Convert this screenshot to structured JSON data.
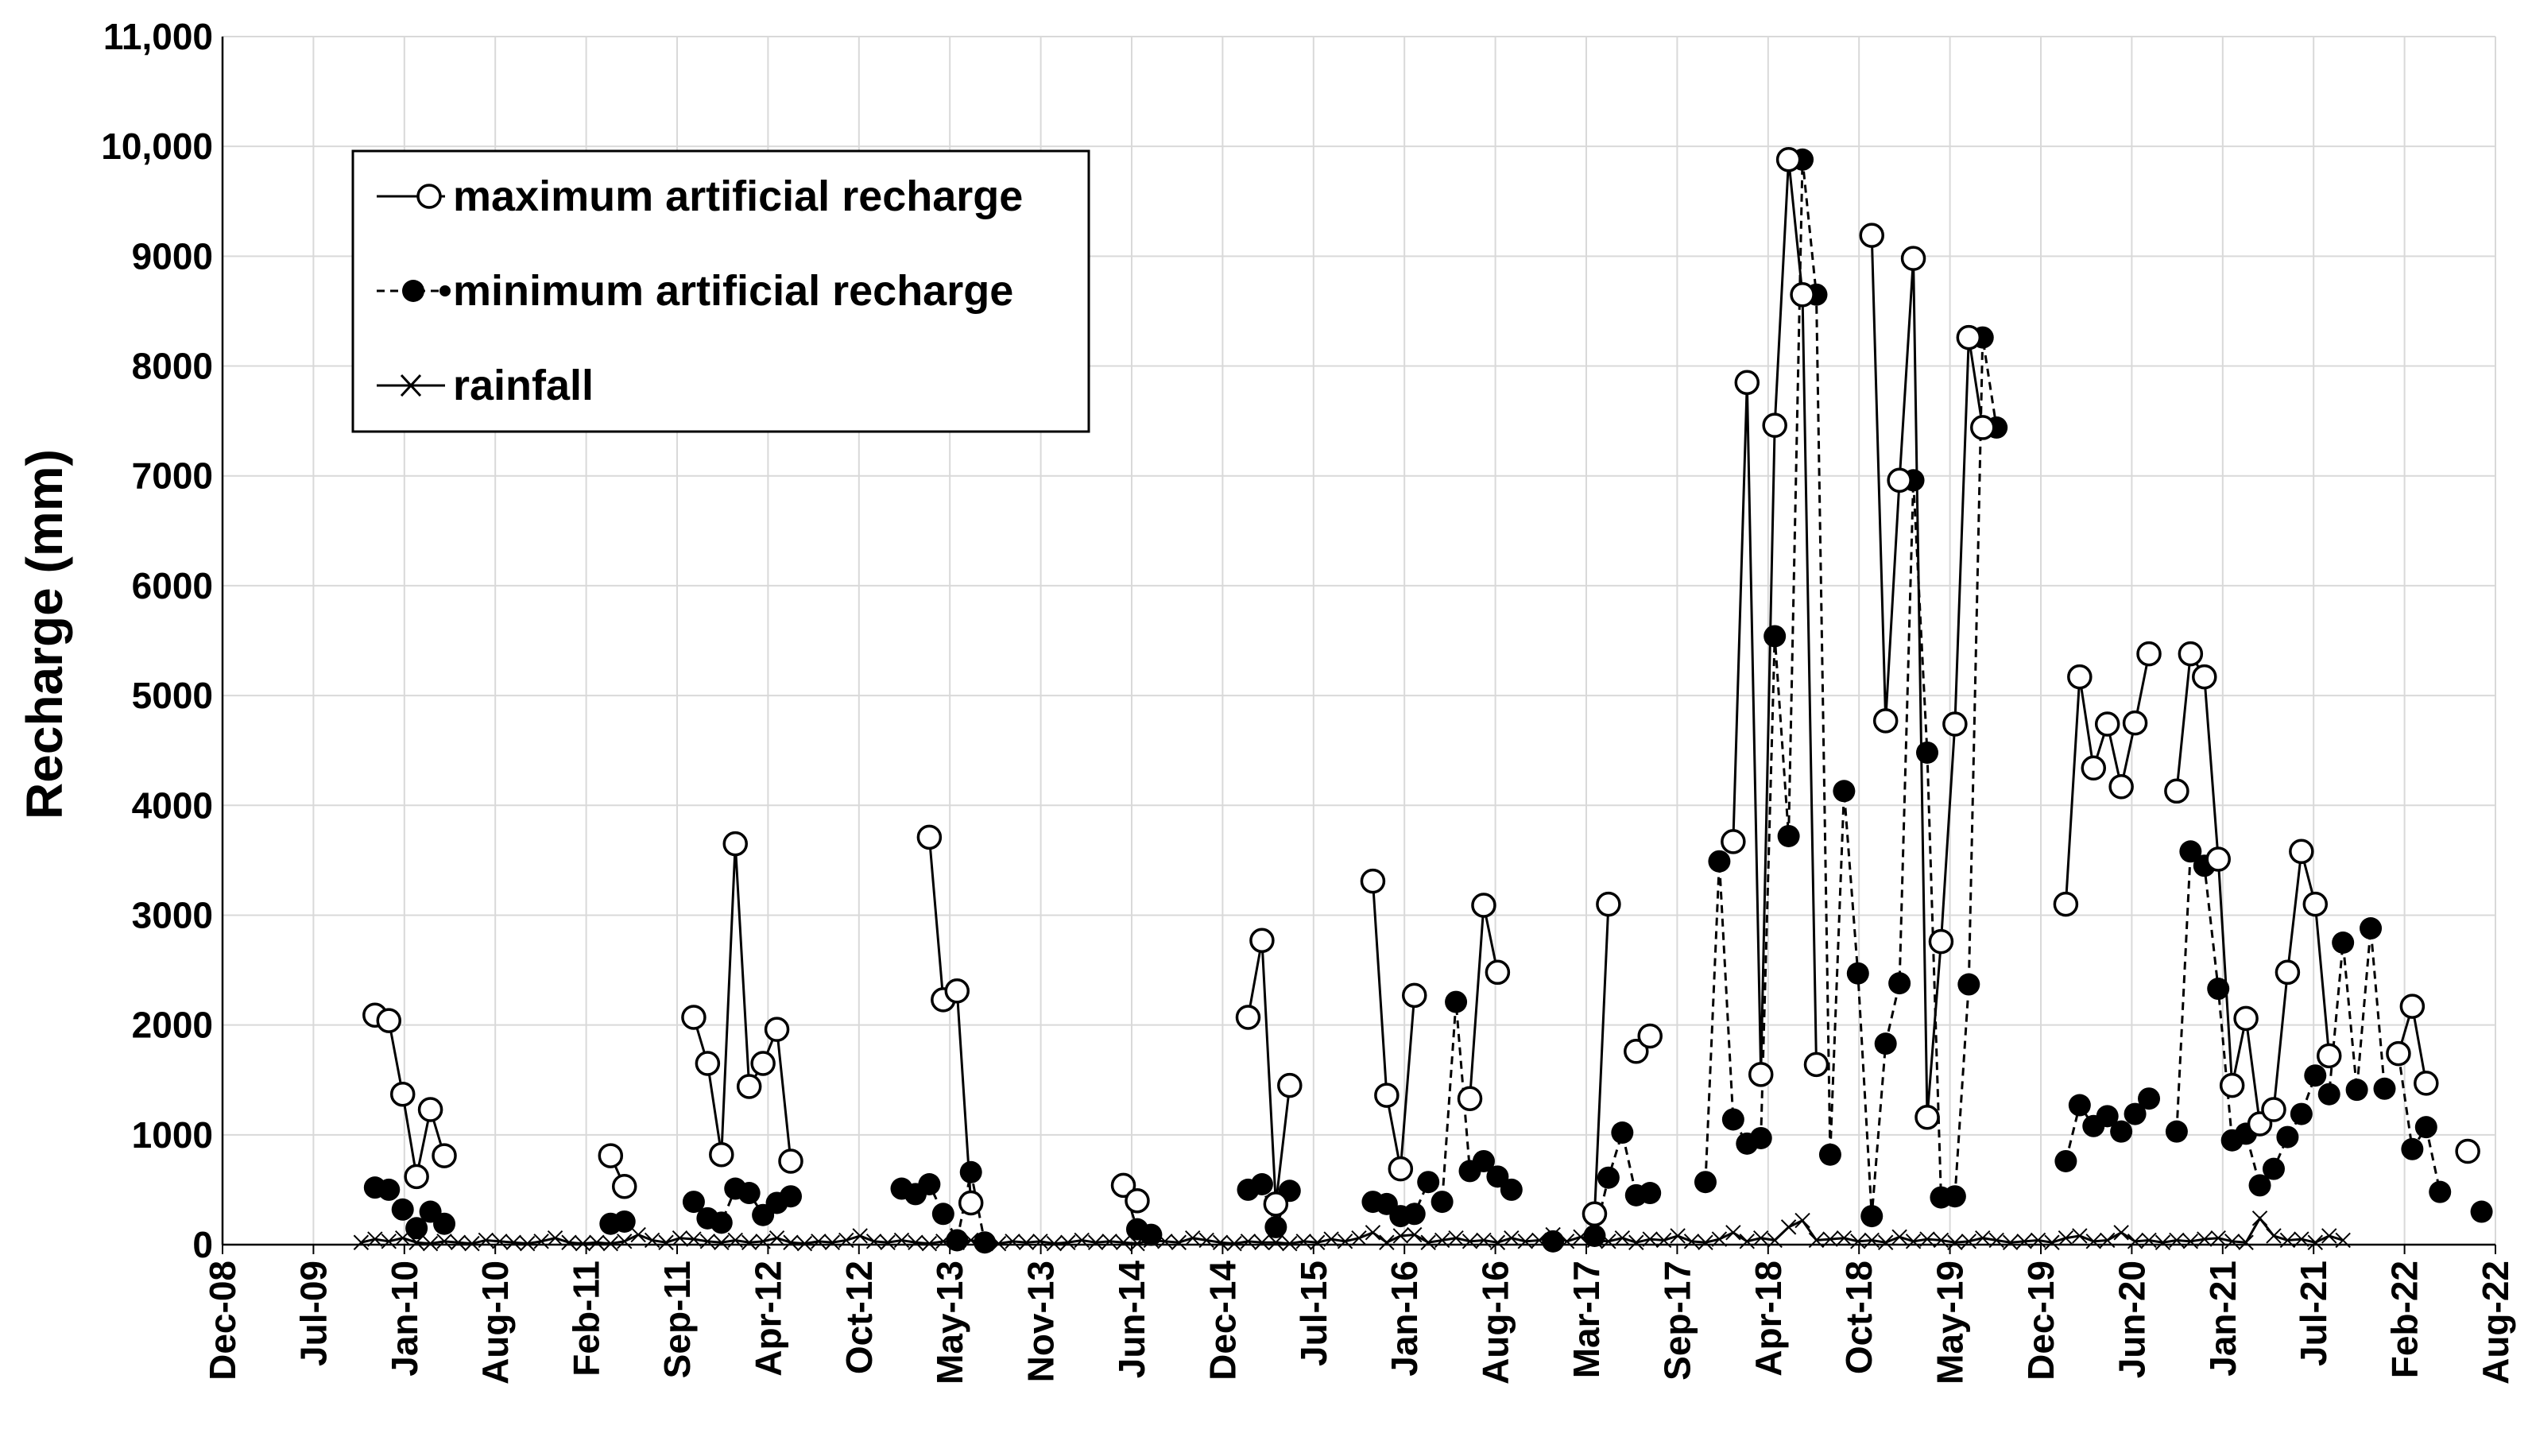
{
  "chart_data": {
    "type": "line",
    "ylabel": "Recharge (mm)",
    "xlabel": "",
    "ylim": [
      0,
      11000
    ],
    "yticks": [
      0,
      1000,
      2000,
      3000,
      4000,
      5000,
      6000,
      7000,
      8000,
      9000,
      "10,000",
      "11,000"
    ],
    "xlim": [
      "2008-12",
      "2022-08"
    ],
    "xtick_labels": [
      "Dec-08",
      "Jul-09",
      "Jan-10",
      "Aug-10",
      "Feb-11",
      "Sep-11",
      "Apr-12",
      "Oct-12",
      "May-13",
      "Nov-13",
      "Jun-14",
      "Dec-14",
      "Jul-15",
      "Jan-16",
      "Aug-16",
      "Mar-17",
      "Sep-17",
      "Apr-18",
      "Oct-18",
      "May-19",
      "Dec-19",
      "Jun-20",
      "Jan-21",
      "Jul-21",
      "Feb-22",
      "Aug-22"
    ],
    "grid": true,
    "legend_position": "top-left",
    "series": [
      {
        "name": "maximum artificial recharge",
        "style": "solid",
        "marker": "open-circle",
        "segments": [
          [
            [
              "2009-11",
              2090
            ],
            [
              "2009-12",
              2040
            ],
            [
              "2010-01",
              1370
            ],
            [
              "2010-02",
              620
            ],
            [
              "2010-03",
              1230
            ],
            [
              "2010-04",
              810
            ]
          ],
          [
            [
              "2011-04",
              810
            ],
            [
              "2011-05",
              530
            ]
          ],
          [
            [
              "2011-10",
              2070
            ],
            [
              "2011-11",
              1650
            ],
            [
              "2011-12",
              820
            ],
            [
              "2012-01",
              3650
            ],
            [
              "2012-02",
              1440
            ],
            [
              "2012-03",
              1650
            ],
            [
              "2012-04",
              1960
            ],
            [
              "2012-05",
              760
            ]
          ],
          [
            [
              "2013-03",
              3710
            ],
            [
              "2013-04",
              2230
            ],
            [
              "2013-05",
              2310
            ],
            [
              "2013-06",
              380
            ]
          ],
          [
            [
              "2014-05",
              540
            ],
            [
              "2014-06",
              400
            ]
          ],
          [
            [
              "2015-02",
              2070
            ],
            [
              "2015-03",
              2770
            ],
            [
              "2015-04",
              370
            ],
            [
              "2015-05",
              1450
            ]
          ],
          [
            [
              "2015-11",
              3310
            ],
            [
              "2015-12",
              1360
            ],
            [
              "2016-01",
              690
            ],
            [
              "2016-02",
              2270
            ]
          ],
          [
            [
              "2016-06",
              1330
            ],
            [
              "2016-07",
              3090
            ],
            [
              "2016-08",
              2480
            ]
          ],
          [
            [
              "2017-03",
              280
            ],
            [
              "2017-04",
              3100
            ]
          ],
          [
            [
              "2017-06",
              1760
            ],
            [
              "2017-07",
              1900
            ]
          ],
          [
            [
              "2018-01",
              3670
            ],
            [
              "2018-02",
              7850
            ],
            [
              "2018-03",
              1550
            ],
            [
              "2018-04",
              7460
            ],
            [
              "2018-05",
              9880
            ],
            [
              "2018-06",
              8650
            ],
            [
              "2018-07",
              1640
            ]
          ],
          [
            [
              "2018-11",
              9190
            ],
            [
              "2018-12",
              4770
            ],
            [
              "2019-01",
              6960
            ],
            [
              "2019-02",
              8980
            ],
            [
              "2019-03",
              1160
            ],
            [
              "2019-04",
              2760
            ],
            [
              "2019-05",
              4740
            ],
            [
              "2019-06",
              8260
            ],
            [
              "2019-07",
              7440
            ]
          ],
          [
            [
              "2020-01",
              3100
            ],
            [
              "2020-02",
              5170
            ],
            [
              "2020-03",
              4340
            ],
            [
              "2020-04",
              4740
            ],
            [
              "2020-05",
              4170
            ],
            [
              "2020-06",
              4750
            ],
            [
              "2020-07",
              5380
            ]
          ],
          [
            [
              "2020-09",
              4130
            ],
            [
              "2020-10",
              5380
            ],
            [
              "2020-11",
              5170
            ],
            [
              "2020-12",
              3510
            ],
            [
              "2021-01",
              1450
            ],
            [
              "2021-02",
              2060
            ],
            [
              "2021-03",
              1100
            ],
            [
              "2021-04",
              1230
            ],
            [
              "2021-05",
              2480
            ],
            [
              "2021-06",
              3580
            ],
            [
              "2021-07",
              3100
            ],
            [
              "2021-08",
              1720
            ]
          ],
          [
            [
              "2022-01",
              1740
            ],
            [
              "2022-02",
              2170
            ],
            [
              "2022-03",
              1470
            ]
          ],
          [
            [
              "2022-06",
              850
            ]
          ]
        ]
      },
      {
        "name": "minimum artificial recharge",
        "style": "dashed",
        "marker": "filled-circle",
        "segments": [
          [
            [
              "2009-11",
              520
            ],
            [
              "2009-12",
              500
            ],
            [
              "2010-01",
              320
            ],
            [
              "2010-02",
              150
            ],
            [
              "2010-03",
              300
            ],
            [
              "2010-04",
              190
            ]
          ],
          [
            [
              "2011-04",
              190
            ],
            [
              "2011-05",
              210
            ]
          ],
          [
            [
              "2011-10",
              390
            ],
            [
              "2011-11",
              240
            ],
            [
              "2011-12",
              200
            ],
            [
              "2012-01",
              510
            ],
            [
              "2012-02",
              470
            ],
            [
              "2012-03",
              270
            ],
            [
              "2012-04",
              380
            ],
            [
              "2012-05",
              440
            ]
          ],
          [
            [
              "2013-01",
              510
            ],
            [
              "2013-02",
              460
            ],
            [
              "2013-03",
              550
            ],
            [
              "2013-04",
              280
            ],
            [
              "2013-05",
              40
            ],
            [
              "2013-06",
              660
            ],
            [
              "2013-07",
              20
            ]
          ],
          [
            [
              "2014-05",
              540
            ],
            [
              "2014-06",
              140
            ],
            [
              "2014-07",
              90
            ]
          ],
          [
            [
              "2015-02",
              500
            ],
            [
              "2015-03",
              550
            ],
            [
              "2015-04",
              160
            ],
            [
              "2015-05",
              490
            ]
          ],
          [
            [
              "2015-11",
              390
            ],
            [
              "2015-12",
              370
            ],
            [
              "2016-01",
              260
            ],
            [
              "2016-02",
              280
            ],
            [
              "2016-03",
              570
            ],
            [
              "2016-04",
              390
            ],
            [
              "2016-05",
              2210
            ],
            [
              "2016-06",
              670
            ],
            [
              "2016-07",
              760
            ],
            [
              "2016-08",
              620
            ],
            [
              "2016-09",
              500
            ]
          ],
          [
            [
              "2016-12",
              30
            ]
          ],
          [
            [
              "2017-03",
              80
            ],
            [
              "2017-04",
              610
            ],
            [
              "2017-05",
              1020
            ],
            [
              "2017-06",
              450
            ],
            [
              "2017-07",
              470
            ]
          ],
          [
            [
              "2017-11",
              570
            ],
            [
              "2017-12",
              3490
            ],
            [
              "2018-01",
              1140
            ],
            [
              "2018-02",
              920
            ],
            [
              "2018-03",
              970
            ],
            [
              "2018-04",
              5540
            ],
            [
              "2018-05",
              3720
            ],
            [
              "2018-06",
              9880
            ],
            [
              "2018-07",
              8650
            ],
            [
              "2018-08",
              820
            ],
            [
              "2018-09",
              4130
            ],
            [
              "2018-10",
              2470
            ],
            [
              "2018-11",
              260
            ],
            [
              "2018-12",
              1830
            ],
            [
              "2019-01",
              2380
            ],
            [
              "2019-02",
              6960
            ],
            [
              "2019-03",
              4480
            ],
            [
              "2019-04",
              430
            ],
            [
              "2019-05",
              440
            ],
            [
              "2019-06",
              2370
            ],
            [
              "2019-07",
              8260
            ],
            [
              "2019-08",
              7440
            ]
          ],
          [
            [
              "2020-01",
              760
            ],
            [
              "2020-02",
              1270
            ],
            [
              "2020-03",
              1080
            ],
            [
              "2020-04",
              1170
            ],
            [
              "2020-05",
              1030
            ],
            [
              "2020-06",
              1190
            ],
            [
              "2020-07",
              1330
            ]
          ],
          [
            [
              "2020-09",
              1030
            ],
            [
              "2020-10",
              3580
            ],
            [
              "2020-11",
              3450
            ],
            [
              "2020-12",
              2330
            ],
            [
              "2021-01",
              950
            ],
            [
              "2021-02",
              1010
            ],
            [
              "2021-03",
              540
            ],
            [
              "2021-04",
              690
            ],
            [
              "2021-05",
              980
            ],
            [
              "2021-06",
              1190
            ],
            [
              "2021-07",
              1540
            ],
            [
              "2021-08",
              1370
            ],
            [
              "2021-09",
              2750
            ],
            [
              "2021-10",
              1410
            ],
            [
              "2021-11",
              2880
            ],
            [
              "2021-12",
              1420
            ]
          ],
          [
            [
              "2022-01",
              1740
            ],
            [
              "2022-02",
              870
            ],
            [
              "2022-03",
              1070
            ],
            [
              "2022-04",
              480
            ]
          ],
          [
            [
              "2022-07",
              300
            ]
          ]
        ]
      },
      {
        "name": "rainfall",
        "style": "solid",
        "marker": "x",
        "start": "2009-10",
        "values": [
          20,
          50,
          30,
          60,
          20,
          10,
          30,
          20,
          10,
          40,
          30,
          20,
          10,
          30,
          60,
          20,
          10,
          20,
          10,
          30,
          90,
          40,
          20,
          60,
          50,
          30,
          20,
          40,
          20,
          30,
          60,
          20,
          10,
          30,
          20,
          40,
          80,
          30,
          20,
          40,
          20,
          10,
          30,
          20,
          40,
          20,
          10,
          30,
          20,
          30,
          10,
          20,
          40,
          20,
          30,
          20,
          10,
          40,
          30,
          20,
          60,
          40,
          20,
          10,
          30,
          20,
          20,
          10,
          30,
          20,
          50,
          30,
          60,
          110,
          20,
          80,
          90,
          20,
          40,
          60,
          30,
          40,
          20,
          60,
          30,
          40,
          90,
          30,
          70,
          40,
          30,
          60,
          20,
          50,
          40,
          80,
          30,
          20,
          50,
          110,
          30,
          60,
          40,
          160,
          220,
          40,
          50,
          60,
          30,
          40,
          20,
          70,
          30,
          50,
          40,
          20,
          30,
          60,
          40,
          20,
          30,
          40,
          20,
          60,
          80,
          30,
          40,
          110,
          30,
          40,
          20,
          40,
          30,
          50,
          60,
          30,
          20,
          240,
          80,
          40,
          50,
          20,
          80,
          40
        ]
      }
    ]
  }
}
